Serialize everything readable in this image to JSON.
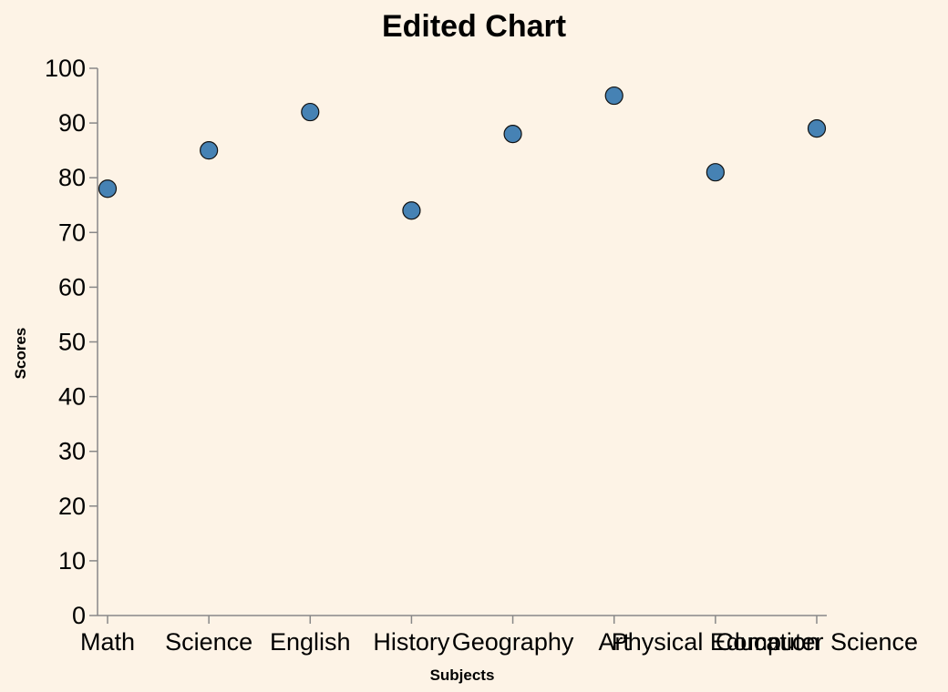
{
  "chart_data": {
    "type": "scatter",
    "title": "Edited Chart",
    "xlabel": "Subjects",
    "ylabel": "Scores",
    "categories": [
      "Math",
      "Science",
      "English",
      "History",
      "Geography",
      "Art",
      "Physical Education",
      "Computer Science"
    ],
    "values": [
      78,
      85,
      92,
      74,
      88,
      95,
      81,
      89
    ],
    "ylim": [
      0,
      100
    ],
    "yticks": [
      0,
      10,
      20,
      30,
      40,
      50,
      60,
      70,
      80,
      90,
      100
    ],
    "grid": false,
    "colors": {
      "point": "#4682b4",
      "background": "#fdf3e6",
      "axis": "#888888"
    }
  }
}
